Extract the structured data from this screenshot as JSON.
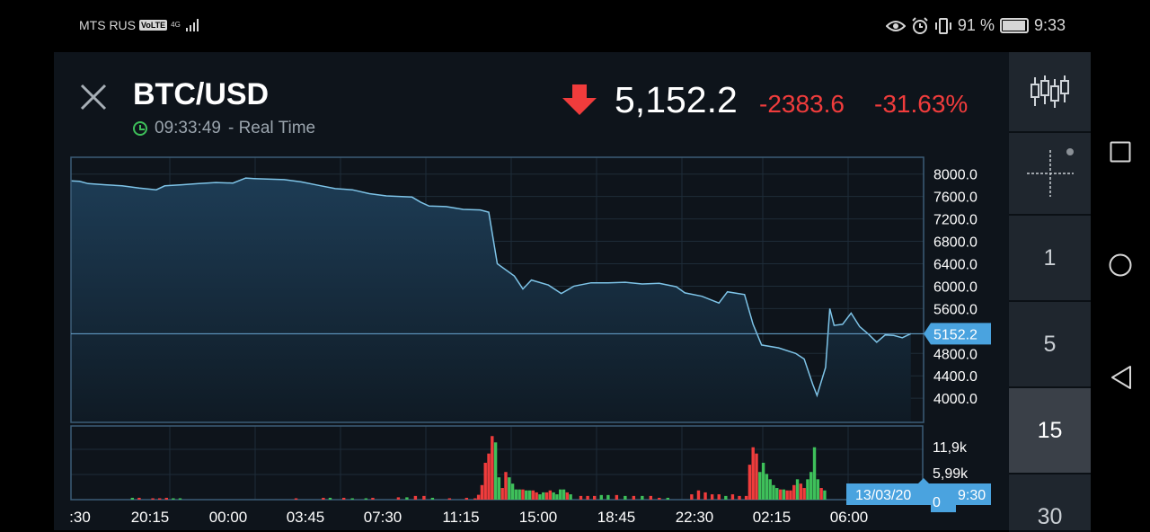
{
  "status_bar": {
    "carrier": "MTS RUS",
    "volte": "VoLTE",
    "network": "4G",
    "battery_percent": "91 %",
    "time": "9:33"
  },
  "header": {
    "pair": "BTC/USD",
    "time": "09:33:49",
    "mode": "- Real Time",
    "price": "5,152.2",
    "change": "-2383.6",
    "change_percent": "-31.63%",
    "direction": "down"
  },
  "colors": {
    "down": "#f03c3c",
    "up": "#3ec05a",
    "line": "#7ec4e8",
    "accent": "#4aa3df"
  },
  "chart_data": {
    "type": "area",
    "price_axis_labels": [
      "8000.0",
      "7600.0",
      "7200.0",
      "6800.0",
      "6400.0",
      "6000.0",
      "5600.0",
      "4800.0",
      "4400.0",
      "4000.0"
    ],
    "price_ticks": [
      8000,
      7600,
      7200,
      6800,
      6400,
      6000,
      5600,
      4800,
      4400,
      4000
    ],
    "ylim": [
      3570,
      8300
    ],
    "current_price_label": "5152.2",
    "current_price": 5152.2,
    "volume_labels": [
      "11,9k",
      "5,99k",
      "0"
    ],
    "volume_max": 15000,
    "x_labels": [
      ":30",
      "20:15",
      "00:00",
      "03:45",
      "07:30",
      "11:15",
      "15:00",
      "18:45",
      "22:30",
      "02:15",
      "06:00"
    ],
    "crosshair_label": "13/03/20",
    "crosshair_time": "9:30",
    "price_series": [
      [
        0,
        7880
      ],
      [
        10,
        7870
      ],
      [
        20,
        7830
      ],
      [
        40,
        7810
      ],
      [
        60,
        7790
      ],
      [
        80,
        7750
      ],
      [
        100,
        7720
      ],
      [
        110,
        7790
      ],
      [
        130,
        7810
      ],
      [
        150,
        7830
      ],
      [
        170,
        7850
      ],
      [
        190,
        7840
      ],
      [
        205,
        7930
      ],
      [
        215,
        7920
      ],
      [
        230,
        7910
      ],
      [
        250,
        7900
      ],
      [
        270,
        7860
      ],
      [
        290,
        7800
      ],
      [
        310,
        7740
      ],
      [
        330,
        7720
      ],
      [
        350,
        7650
      ],
      [
        370,
        7610
      ],
      [
        400,
        7590
      ],
      [
        410,
        7500
      ],
      [
        420,
        7430
      ],
      [
        440,
        7420
      ],
      [
        460,
        7370
      ],
      [
        480,
        7360
      ],
      [
        490,
        7320
      ],
      [
        500,
        6400
      ],
      [
        520,
        6180
      ],
      [
        530,
        5950
      ],
      [
        540,
        6110
      ],
      [
        560,
        6020
      ],
      [
        575,
        5870
      ],
      [
        590,
        6000
      ],
      [
        610,
        6060
      ],
      [
        630,
        6060
      ],
      [
        650,
        6070
      ],
      [
        670,
        6040
      ],
      [
        690,
        6050
      ],
      [
        710,
        5990
      ],
      [
        720,
        5880
      ],
      [
        740,
        5820
      ],
      [
        760,
        5700
      ],
      [
        770,
        5900
      ],
      [
        790,
        5850
      ],
      [
        800,
        5320
      ],
      [
        810,
        4950
      ],
      [
        830,
        4900
      ],
      [
        850,
        4800
      ],
      [
        860,
        4700
      ],
      [
        870,
        4250
      ],
      [
        875,
        4050
      ],
      [
        885,
        4550
      ],
      [
        890,
        5600
      ],
      [
        895,
        5300
      ],
      [
        905,
        5320
      ],
      [
        915,
        5520
      ],
      [
        925,
        5280
      ],
      [
        935,
        5150
      ],
      [
        945,
        5000
      ],
      [
        955,
        5130
      ],
      [
        965,
        5120
      ],
      [
        975,
        5080
      ],
      [
        985,
        5152
      ]
    ],
    "volume_bars": [
      {
        "x": 72,
        "v": 380,
        "c": "up"
      },
      {
        "x": 80,
        "v": 380,
        "c": "down"
      },
      {
        "x": 96,
        "v": 280,
        "c": "down"
      },
      {
        "x": 104,
        "v": 280,
        "c": "down"
      },
      {
        "x": 112,
        "v": 380,
        "c": "down"
      },
      {
        "x": 120,
        "v": 280,
        "c": "up"
      },
      {
        "x": 128,
        "v": 280,
        "c": "up"
      },
      {
        "x": 264,
        "v": 280,
        "c": "down"
      },
      {
        "x": 296,
        "v": 380,
        "c": "down"
      },
      {
        "x": 304,
        "v": 380,
        "c": "up"
      },
      {
        "x": 320,
        "v": 380,
        "c": "down"
      },
      {
        "x": 330,
        "v": 280,
        "c": "up"
      },
      {
        "x": 346,
        "v": 280,
        "c": "up"
      },
      {
        "x": 354,
        "v": 380,
        "c": "down"
      },
      {
        "x": 384,
        "v": 480,
        "c": "down"
      },
      {
        "x": 394,
        "v": 480,
        "c": "up"
      },
      {
        "x": 404,
        "v": 760,
        "c": "down"
      },
      {
        "x": 414,
        "v": 760,
        "c": "down"
      },
      {
        "x": 424,
        "v": 380,
        "c": "up"
      },
      {
        "x": 444,
        "v": 280,
        "c": "down"
      },
      {
        "x": 464,
        "v": 380,
        "c": "down"
      },
      {
        "x": 474,
        "v": 280,
        "c": "down"
      },
      {
        "x": 478,
        "v": 1000,
        "c": "down"
      },
      {
        "x": 482,
        "v": 3000,
        "c": "down"
      },
      {
        "x": 486,
        "v": 7600,
        "c": "down"
      },
      {
        "x": 490,
        "v": 9500,
        "c": "down"
      },
      {
        "x": 494,
        "v": 13100,
        "c": "down"
      },
      {
        "x": 498,
        "v": 11800,
        "c": "up"
      },
      {
        "x": 502,
        "v": 4600,
        "c": "up"
      },
      {
        "x": 506,
        "v": 2400,
        "c": "down"
      },
      {
        "x": 510,
        "v": 5700,
        "c": "down"
      },
      {
        "x": 514,
        "v": 4600,
        "c": "up"
      },
      {
        "x": 518,
        "v": 3300,
        "c": "up"
      },
      {
        "x": 522,
        "v": 2100,
        "c": "up"
      },
      {
        "x": 526,
        "v": 2100,
        "c": "up"
      },
      {
        "x": 530,
        "v": 2100,
        "c": "down"
      },
      {
        "x": 534,
        "v": 1900,
        "c": "up"
      },
      {
        "x": 538,
        "v": 1900,
        "c": "up"
      },
      {
        "x": 542,
        "v": 1900,
        "c": "down"
      },
      {
        "x": 546,
        "v": 1500,
        "c": "down"
      },
      {
        "x": 550,
        "v": 1100,
        "c": "up"
      },
      {
        "x": 554,
        "v": 1500,
        "c": "up"
      },
      {
        "x": 558,
        "v": 1500,
        "c": "down"
      },
      {
        "x": 562,
        "v": 1900,
        "c": "down"
      },
      {
        "x": 566,
        "v": 1500,
        "c": "up"
      },
      {
        "x": 570,
        "v": 1100,
        "c": "up"
      },
      {
        "x": 574,
        "v": 2100,
        "c": "up"
      },
      {
        "x": 578,
        "v": 2100,
        "c": "up"
      },
      {
        "x": 582,
        "v": 1500,
        "c": "down"
      },
      {
        "x": 586,
        "v": 1100,
        "c": "up"
      },
      {
        "x": 598,
        "v": 760,
        "c": "down"
      },
      {
        "x": 606,
        "v": 760,
        "c": "down"
      },
      {
        "x": 614,
        "v": 760,
        "c": "down"
      },
      {
        "x": 622,
        "v": 950,
        "c": "up"
      },
      {
        "x": 630,
        "v": 950,
        "c": "up"
      },
      {
        "x": 640,
        "v": 950,
        "c": "down"
      },
      {
        "x": 650,
        "v": 760,
        "c": "up"
      },
      {
        "x": 660,
        "v": 760,
        "c": "down"
      },
      {
        "x": 670,
        "v": 760,
        "c": "up"
      },
      {
        "x": 680,
        "v": 760,
        "c": "down"
      },
      {
        "x": 690,
        "v": 380,
        "c": "down"
      },
      {
        "x": 700,
        "v": 380,
        "c": "up"
      },
      {
        "x": 728,
        "v": 1100,
        "c": "down"
      },
      {
        "x": 736,
        "v": 1900,
        "c": "down"
      },
      {
        "x": 744,
        "v": 1500,
        "c": "down"
      },
      {
        "x": 752,
        "v": 1100,
        "c": "down"
      },
      {
        "x": 760,
        "v": 1100,
        "c": "down"
      },
      {
        "x": 768,
        "v": 760,
        "c": "up"
      },
      {
        "x": 776,
        "v": 1100,
        "c": "down"
      },
      {
        "x": 784,
        "v": 760,
        "c": "down"
      },
      {
        "x": 792,
        "v": 760,
        "c": "down"
      },
      {
        "x": 796,
        "v": 7200,
        "c": "down"
      },
      {
        "x": 800,
        "v": 10800,
        "c": "down"
      },
      {
        "x": 804,
        "v": 9500,
        "c": "down"
      },
      {
        "x": 808,
        "v": 5700,
        "c": "up"
      },
      {
        "x": 812,
        "v": 7600,
        "c": "up"
      },
      {
        "x": 816,
        "v": 5300,
        "c": "up"
      },
      {
        "x": 820,
        "v": 4200,
        "c": "up"
      },
      {
        "x": 824,
        "v": 3000,
        "c": "up"
      },
      {
        "x": 828,
        "v": 2400,
        "c": "up"
      },
      {
        "x": 832,
        "v": 2100,
        "c": "down"
      },
      {
        "x": 836,
        "v": 2100,
        "c": "up"
      },
      {
        "x": 840,
        "v": 1900,
        "c": "down"
      },
      {
        "x": 844,
        "v": 1900,
        "c": "down"
      },
      {
        "x": 848,
        "v": 3000,
        "c": "down"
      },
      {
        "x": 852,
        "v": 4200,
        "c": "up"
      },
      {
        "x": 856,
        "v": 3300,
        "c": "down"
      },
      {
        "x": 860,
        "v": 2400,
        "c": "down"
      },
      {
        "x": 864,
        "v": 4200,
        "c": "up"
      },
      {
        "x": 868,
        "v": 5700,
        "c": "up"
      },
      {
        "x": 872,
        "v": 10800,
        "c": "up"
      },
      {
        "x": 876,
        "v": 4200,
        "c": "up"
      },
      {
        "x": 880,
        "v": 2400,
        "c": "down"
      },
      {
        "x": 884,
        "v": 1900,
        "c": "up"
      }
    ]
  },
  "timeframes": {
    "one": "1",
    "five": "5",
    "fifteen": "15",
    "thirty": "30"
  }
}
